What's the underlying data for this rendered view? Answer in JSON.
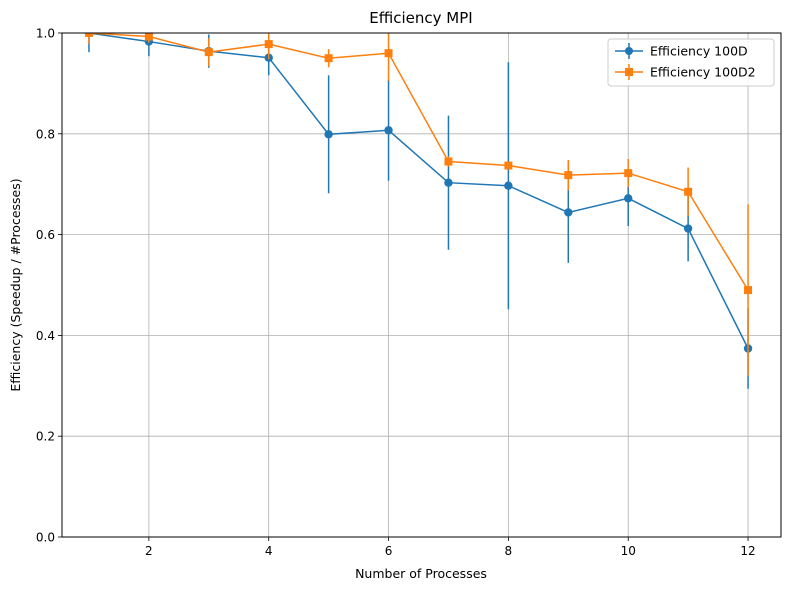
{
  "chart_data": {
    "type": "line",
    "title": "Efficiency MPI",
    "xlabel": "Number of Processes",
    "ylabel": "Efficiency (Speedup / #Processes)",
    "xlim": [
      0.55,
      12.55
    ],
    "ylim": [
      0,
      1.0
    ],
    "xticks": [
      2,
      4,
      6,
      8,
      10,
      12
    ],
    "yticks": [
      0.0,
      0.2,
      0.4,
      0.6,
      0.8,
      1.0
    ],
    "xtick_labels": [
      "2",
      "4",
      "6",
      "8",
      "10",
      "12"
    ],
    "ytick_labels": [
      "0.0",
      "0.2",
      "0.4",
      "0.6",
      "0.8",
      "1.0"
    ],
    "grid": true,
    "legend_position": "top-right",
    "x": [
      1,
      2,
      3,
      4,
      5,
      6,
      7,
      8,
      9,
      10,
      11,
      12
    ],
    "series": [
      {
        "name": "Efficiency 100D",
        "color": "#1f77b4",
        "marker": "circle",
        "values": [
          1.0,
          0.983,
          0.964,
          0.951,
          0.799,
          0.807,
          0.703,
          0.697,
          0.644,
          0.672,
          0.612,
          0.374
        ],
        "errors": [
          0.038,
          0.029,
          0.033,
          0.035,
          0.117,
          0.1,
          0.133,
          0.245,
          0.1,
          0.055,
          0.065,
          0.08
        ]
      },
      {
        "name": "Efficiency 100D2",
        "color": "#ff7f0e",
        "marker": "square",
        "values": [
          1.0,
          0.993,
          0.962,
          0.978,
          0.95,
          0.96,
          0.745,
          0.737,
          0.718,
          0.722,
          0.685,
          0.49
        ],
        "errors": [
          0.022,
          0.012,
          0.028,
          0.03,
          0.018,
          0.055,
          0.01,
          0.0,
          0.03,
          0.028,
          0.048,
          0.17
        ]
      }
    ]
  }
}
